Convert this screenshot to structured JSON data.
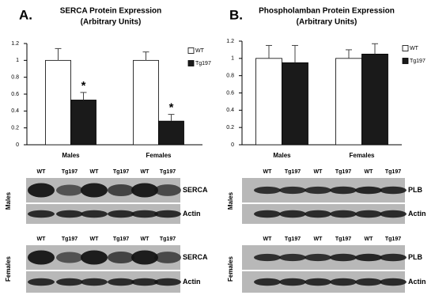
{
  "chart_data": [
    {
      "type": "bar",
      "label": "A.",
      "title": "SERCA Protein Expression",
      "subtitle": "(Arbitrary Units)",
      "categories": [
        "Males",
        "Females"
      ],
      "series": [
        {
          "name": "WT",
          "color": "#ffffff",
          "values": [
            1,
            1
          ],
          "errors": [
            0.14,
            0.1
          ]
        },
        {
          "name": "Tg197",
          "color": "#1a1a1a",
          "values": [
            0.53,
            0.28
          ],
          "errors": [
            0.09,
            0.08
          ],
          "markers": [
            "*",
            "*"
          ]
        }
      ],
      "ylim": [
        0,
        1.2
      ],
      "yticks": [
        0,
        0.2,
        0.4,
        0.6,
        0.8,
        1,
        1.2
      ],
      "legend": "right"
    },
    {
      "type": "bar",
      "label": "B.",
      "title": "Phospholamban Protein Expression",
      "subtitle": "(Arbitrary Units)",
      "categories": [
        "Males",
        "Females"
      ],
      "series": [
        {
          "name": "WT",
          "color": "#ffffff",
          "values": [
            1,
            1
          ],
          "errors": [
            0.15,
            0.1
          ]
        },
        {
          "name": "Tg197",
          "color": "#1a1a1a",
          "values": [
            0.95,
            1.05
          ],
          "errors": [
            0.2,
            0.12
          ]
        }
      ],
      "ylim": [
        0,
        1.2
      ],
      "yticks": [
        0,
        0.2,
        0.4,
        0.6,
        0.8,
        1,
        1.2
      ],
      "legend": "right"
    }
  ],
  "blots": [
    {
      "groups": [
        {
          "name": "Males",
          "lanes": [
            "WT",
            "Tg197",
            "WT",
            "Tg197",
            "WT",
            "Tg197"
          ],
          "bands": [
            "SERCA",
            "Actin"
          ]
        },
        {
          "name": "Females",
          "lanes": [
            "WT",
            "Tg197",
            "WT",
            "Tg197",
            "WT",
            "Tg197"
          ],
          "bands": [
            "SERCA",
            "Actin"
          ]
        }
      ]
    },
    {
      "groups": [
        {
          "name": "Males",
          "lanes": [
            "WT",
            "Tg197",
            "WT",
            "Tg197",
            "WT",
            "Tg197"
          ],
          "bands": [
            "PLB",
            "Actin"
          ]
        },
        {
          "name": "Females",
          "lanes": [
            "WT",
            "Tg197",
            "WT",
            "Tg197",
            "WT",
            "Tg197"
          ],
          "bands": [
            "PLB",
            "Actin"
          ]
        }
      ]
    }
  ]
}
